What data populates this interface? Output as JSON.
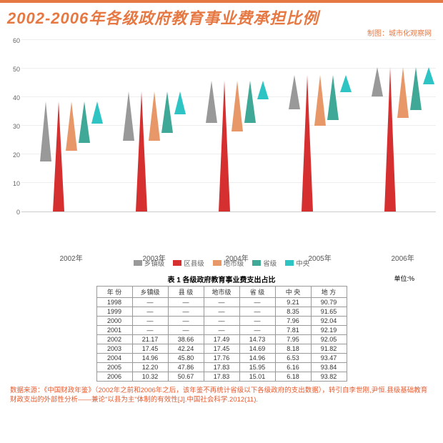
{
  "title": "2002-2006年各级政府教育事业费承担比例",
  "subtitle": "制图：城市化观察网",
  "chart": {
    "type": "cone-bar",
    "ylim": [
      0,
      60
    ],
    "ytick_step": 10,
    "years": [
      "2002年",
      "2003年",
      "2004年",
      "2005年",
      "2006年"
    ],
    "series": [
      {
        "name": "乡镇级",
        "color": "#999999",
        "values": [
          21.17,
          17.45,
          14.96,
          12.2,
          10.32
        ]
      },
      {
        "name": "区县级",
        "color": "#d62f2f",
        "values": [
          38.66,
          42.24,
          45.8,
          47.86,
          50.67
        ]
      },
      {
        "name": "地市级",
        "color": "#e89868",
        "values": [
          17.49,
          17.45,
          17.76,
          17.83,
          17.83
        ]
      },
      {
        "name": "省级",
        "color": "#3fa896",
        "values": [
          14.73,
          14.69,
          14.96,
          15.95,
          15.01
        ]
      },
      {
        "name": "中央",
        "color": "#2fc4c4",
        "values": [
          7.95,
          8.18,
          6.53,
          6.16,
          6.18
        ]
      }
    ],
    "cone_half_width": 8,
    "group_gap_pct": [
      12,
      32,
      52,
      72,
      92
    ]
  },
  "table": {
    "title": "表 1  各级政府教育事业费支出占比",
    "unit": "单位:%",
    "columns": [
      "年 份",
      "乡镇级",
      "县 级",
      "地市级",
      "省 级",
      "中 央",
      "地 方"
    ],
    "rows": [
      [
        "1998",
        "—",
        "—",
        "—",
        "—",
        "9.21",
        "90.79"
      ],
      [
        "1999",
        "—",
        "—",
        "—",
        "—",
        "8.35",
        "91.65"
      ],
      [
        "2000",
        "—",
        "—",
        "—",
        "—",
        "7.96",
        "92.04"
      ],
      [
        "2001",
        "—",
        "—",
        "—",
        "—",
        "7.81",
        "92.19"
      ],
      [
        "2002",
        "21.17",
        "38.66",
        "17.49",
        "14.73",
        "7.95",
        "92.05"
      ],
      [
        "2003",
        "17.45",
        "42.24",
        "17.45",
        "14.69",
        "8.18",
        "91.82"
      ],
      [
        "2004",
        "14.96",
        "45.80",
        "17.76",
        "14.96",
        "6.53",
        "93.47"
      ],
      [
        "2005",
        "12.20",
        "47.86",
        "17.83",
        "15.95",
        "6.16",
        "93.84"
      ],
      [
        "2006",
        "10.32",
        "50.67",
        "17.83",
        "15.01",
        "6.18",
        "93.82"
      ]
    ]
  },
  "source": "数据来源：《中国财政年鉴》（2002年之前和2006年之后，该年鉴不再统计省级以下各级政府的支出数据），转引自李世刚,尹恒.县级基础教育财政支出的外部性分析——兼论\"以县为主\"体制的有效性[J].中国社会科学.2012(11)."
}
